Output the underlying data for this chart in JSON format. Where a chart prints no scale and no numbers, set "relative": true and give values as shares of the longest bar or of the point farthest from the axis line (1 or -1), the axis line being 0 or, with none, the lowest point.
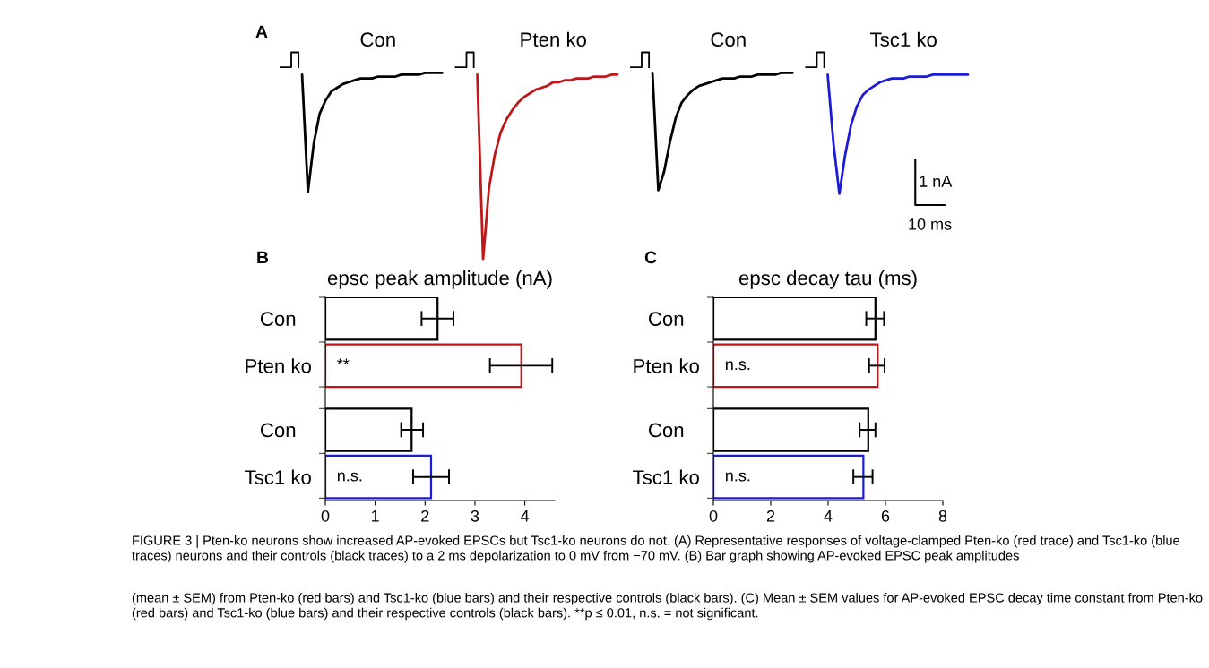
{
  "chart_data": [
    {
      "type": "line",
      "relative": true,
      "categories": [
        null,
        null,
        null,
        null,
        null,
        null,
        null,
        null,
        null,
        null,
        null,
        null,
        null,
        null,
        null,
        null,
        null,
        null,
        null,
        null,
        null,
        null,
        null,
        null,
        null,
        null,
        null,
        null,
        null,
        null,
        null,
        null,
        null,
        null,
        null,
        null,
        null,
        null,
        null,
        null,
        null,
        null,
        null,
        null,
        null,
        null,
        null,
        null,
        null,
        null,
        null,
        null,
        null,
        null,
        null,
        null,
        null,
        null,
        null,
        null,
        null,
        null,
        null,
        null,
        null,
        null,
        null,
        null,
        null,
        null,
        null,
        null,
        null,
        null,
        null,
        null,
        null,
        null,
        null,
        null,
        null,
        null,
        null,
        null,
        null,
        null,
        null,
        null,
        null,
        null,
        null,
        null,
        null,
        null,
        null,
        null,
        null,
        null,
        null,
        null,
        null,
        null,
        null,
        null,
        null,
        null,
        null,
        null,
        null,
        null,
        null,
        null,
        null,
        null,
        null,
        null,
        null,
        null,
        null,
        null,
        null,
        null,
        null,
        null
      ],
      "series": [
        {
          "name": "Con",
          "color": "#000000",
          "values": [
            null,
            null,
            null,
            null,
            0.99,
            0.36,
            0.62,
            0.78,
            0.85,
            0.9,
            0.92,
            0.94,
            0.95,
            0.96,
            0.97,
            0.97,
            0.97,
            0.98,
            0.98,
            0.98,
            0.98,
            0.99,
            0.99,
            0.99,
            0.99,
            1.0,
            1.0,
            1.0,
            1.0,
            null,
            null,
            null,
            null,
            null,
            null,
            null,
            null,
            null,
            null,
            null,
            null,
            null,
            null,
            null,
            null,
            null,
            null,
            null,
            null,
            null,
            null,
            null,
            null,
            null,
            null,
            null,
            null,
            null,
            null,
            null,
            null,
            null,
            null,
            null,
            null,
            null,
            null,
            null,
            null,
            null,
            null,
            null,
            null,
            null,
            null,
            null,
            null,
            null,
            null,
            null,
            null,
            null,
            null,
            null,
            null,
            null,
            null,
            null,
            null,
            null,
            null,
            null,
            null,
            null,
            null,
            null,
            null,
            null,
            null,
            null,
            null,
            null,
            null,
            null,
            null,
            null,
            null,
            null,
            null,
            null,
            null,
            null,
            null,
            null,
            null,
            null,
            null,
            null,
            null,
            null,
            null,
            null,
            null,
            null
          ]
        },
        {
          "name": "Pten ko",
          "color": "#c01818",
          "values": [
            null,
            null,
            null,
            null,
            null,
            null,
            null,
            null,
            null,
            null,
            null,
            null,
            null,
            null,
            null,
            null,
            null,
            null,
            null,
            null,
            null,
            null,
            null,
            null,
            null,
            null,
            null,
            null,
            null,
            null,
            null,
            null,
            null,
            null,
            0.99,
            0,
            0.38,
            0.56,
            0.68,
            0.75,
            0.8,
            0.84,
            0.87,
            0.89,
            0.91,
            0.92,
            0.93,
            0.95,
            0.95,
            0.96,
            0.96,
            0.97,
            0.97,
            0.97,
            0.98,
            0.98,
            0.98,
            0.99,
            0.99,
            null,
            null,
            null,
            null,
            null,
            null,
            null,
            null,
            null,
            null,
            null,
            null,
            null,
            null,
            null,
            null,
            null,
            null,
            null,
            null,
            null,
            null,
            null,
            null,
            null,
            null,
            null,
            null,
            null,
            null,
            null,
            null,
            null,
            null,
            null,
            null,
            null,
            null,
            null,
            null,
            null,
            null,
            null,
            null,
            null,
            null,
            null,
            null,
            null,
            null,
            null,
            null,
            null,
            null,
            null,
            null,
            null,
            null,
            null,
            null,
            null,
            null,
            null,
            null,
            null
          ]
        },
        {
          "name": "Con",
          "color": "#000000",
          "values": [
            null,
            null,
            null,
            null,
            null,
            null,
            null,
            null,
            null,
            null,
            null,
            null,
            null,
            null,
            null,
            null,
            null,
            null,
            null,
            null,
            null,
            null,
            null,
            null,
            null,
            null,
            null,
            null,
            null,
            null,
            null,
            null,
            null,
            null,
            null,
            null,
            null,
            null,
            null,
            null,
            null,
            null,
            null,
            null,
            null,
            null,
            null,
            null,
            null,
            null,
            null,
            null,
            null,
            null,
            null,
            null,
            null,
            null,
            null,
            null,
            null,
            null,
            null,
            null,
            1.0,
            0.37,
            0.47,
            0.63,
            0.76,
            0.84,
            0.88,
            0.91,
            0.93,
            0.94,
            0.95,
            0.96,
            0.97,
            0.97,
            0.97,
            0.98,
            0.98,
            0.98,
            0.99,
            0.99,
            0.99,
            0.99,
            1.0,
            1.0,
            1.0,
            null,
            null,
            null,
            null,
            null,
            null,
            null,
            null,
            null,
            null,
            null,
            null,
            null,
            null,
            null,
            null,
            null,
            null,
            null,
            null,
            null,
            null,
            null,
            null,
            null,
            null,
            null,
            null,
            null,
            null,
            null,
            null,
            null,
            null,
            null
          ]
        },
        {
          "name": "Tsc1 ko",
          "color": "#1c1cd8",
          "values": [
            null,
            null,
            null,
            null,
            null,
            null,
            null,
            null,
            null,
            null,
            null,
            null,
            null,
            null,
            null,
            null,
            null,
            null,
            null,
            null,
            null,
            null,
            null,
            null,
            null,
            null,
            null,
            null,
            null,
            null,
            null,
            null,
            null,
            null,
            null,
            null,
            null,
            null,
            null,
            null,
            null,
            null,
            null,
            null,
            null,
            null,
            null,
            null,
            null,
            null,
            null,
            null,
            null,
            null,
            null,
            null,
            null,
            null,
            null,
            null,
            null,
            null,
            null,
            null,
            null,
            null,
            null,
            null,
            null,
            null,
            null,
            null,
            null,
            null,
            null,
            null,
            null,
            null,
            null,
            null,
            null,
            null,
            null,
            null,
            null,
            null,
            null,
            null,
            null,
            null,
            null,
            null,
            null,
            null,
            0.99,
            0.62,
            0.35,
            0.56,
            0.72,
            0.82,
            0.88,
            0.91,
            0.93,
            0.95,
            0.96,
            0.97,
            0.97,
            0.97,
            0.98,
            0.98,
            0.98,
            0.98,
            0.99,
            0.99,
            0.99,
            0.99,
            0.99,
            0.99,
            0.99,
            null,
            null,
            null,
            null,
            null
          ]
        }
      ],
      "annotations": [
        "A",
        "1 nA",
        "10 ms"
      ]
    },
    {
      "type": "bar",
      "orientation": "horizontal",
      "title": "epsc peak amplitude (nA)",
      "categories": [
        "Con",
        "Pten ko",
        "Con",
        "Tsc1 ko"
      ],
      "values": [
        2.25,
        3.93,
        1.73,
        2.12
      ],
      "colors": [
        "#000000",
        "#c01818",
        "#000000",
        "#1c1cd8"
      ],
      "errors": [
        [
          1.93,
          2.57
        ],
        [
          3.3,
          4.55
        ],
        [
          1.52,
          1.96
        ],
        [
          1.76,
          2.48
        ]
      ],
      "xlim": [
        0,
        4.6
      ],
      "xticks": [
        0,
        1,
        2,
        3,
        4
      ],
      "annotations": [
        "B",
        "**",
        "n.s."
      ]
    },
    {
      "type": "bar",
      "orientation": "horizontal",
      "title": "epsc decay tau (ms)",
      "categories": [
        "Con",
        "Pten ko",
        "Con",
        "Tsc1 ko"
      ],
      "values": [
        5.65,
        5.73,
        5.4,
        5.23
      ],
      "colors": [
        "#000000",
        "#c01818",
        "#000000",
        "#1c1cd8"
      ],
      "errors": [
        [
          5.33,
          5.95
        ],
        [
          5.43,
          5.97
        ],
        [
          5.1,
          5.65
        ],
        [
          4.88,
          5.55
        ]
      ],
      "xlim": [
        0,
        8
      ],
      "xticks": [
        0,
        2,
        4,
        6,
        8
      ],
      "annotations": [
        "C",
        "n.s.",
        "n.s.",
        "FIGURE 3 | Pten-ko neurons show increased AP-evoked EPSCs but Tsc1-ko neurons do not. (A) Representative responses of voltage-clamped Pten-ko (red trace) and Tsc1-ko (blue traces) neurons and their controls (black traces) to a 2 ms depolarization to 0 mV from −70 mV. (B) Bar graph showing AP-evoked EPSC peak amplitudes",
        "(mean ± SEM) from Pten-ko (red bars) and Tsc1-ko (blue bars) and their respective controls (black bars). (C) Mean ± SEM values for AP-evoked EPSC decay time constant from Pten-ko (red bars) and Tsc1-ko (blue bars) and their respective controls (black bars). **p ≤ 0.01, n.s. = not significant."
      ]
    }
  ]
}
